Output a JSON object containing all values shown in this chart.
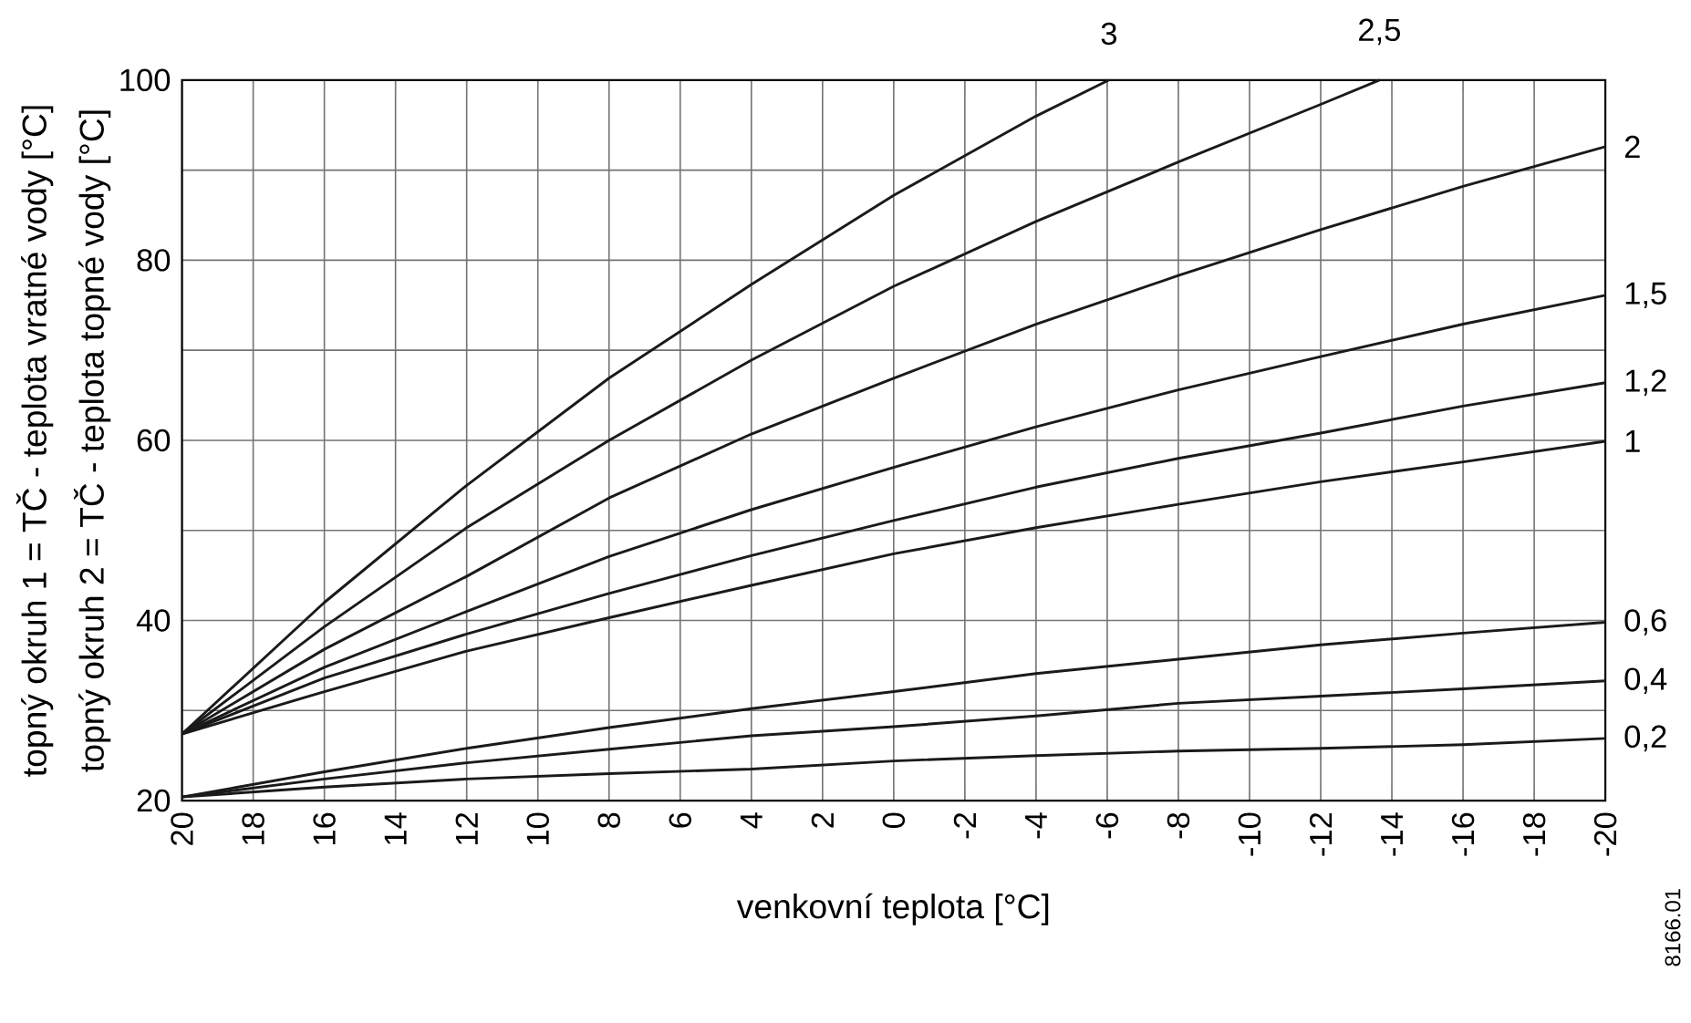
{
  "chart_data": {
    "type": "line",
    "xlabel": "venkovní teplota  [°C]",
    "ylabel": "topný okruh 1 = TČ - teplota vratné vody  [°C]",
    "annotations": [
      "topný okruh 2 = TČ - teplota topné vody  [°C]",
      "8166.01"
    ],
    "xlim": [
      20,
      -20
    ],
    "xticks": [
      20,
      18,
      16,
      14,
      12,
      10,
      8,
      6,
      4,
      2,
      0,
      -2,
      -4,
      -6,
      -8,
      -10,
      -12,
      -14,
      -16,
      -18,
      -20
    ],
    "ylim": [
      20,
      100
    ],
    "yticks": [
      20,
      {
        "value": 30,
        "label": null
      },
      40,
      {
        "value": 50,
        "label": null
      },
      60,
      {
        "value": 70,
        "label": null
      },
      80,
      {
        "value": 90,
        "label": null
      },
      100
    ],
    "grid": true,
    "marker": "none",
    "line_style": "solid",
    "series": [
      {
        "name": "3",
        "color": "#1a1a1a",
        "x": [
          20,
          16,
          12,
          8,
          4,
          0,
          -4,
          -6.05
        ],
        "values": [
          27.4,
          42.0,
          55.0,
          66.9,
          77.3,
          87.2,
          96.0,
          100
        ]
      },
      {
        "name": "2,5",
        "color": "#1a1a1a",
        "x": [
          20,
          16,
          12,
          8,
          4,
          0,
          -4,
          -8,
          -12,
          -13.65
        ],
        "values": [
          27.4,
          39.3,
          50.3,
          60.0,
          68.9,
          77.1,
          84.3,
          90.9,
          97.3,
          100
        ]
      },
      {
        "name": "2",
        "color": "#1a1a1a",
        "x": [
          20,
          16,
          12,
          8,
          4,
          0,
          -4,
          -8,
          -12,
          -16,
          -20
        ],
        "values": [
          27.4,
          36.8,
          44.9,
          53.6,
          60.7,
          66.9,
          72.9,
          78.3,
          83.4,
          88.2,
          92.6
        ]
      },
      {
        "name": "1,5",
        "color": "#1a1a1a",
        "x": [
          20,
          16,
          12,
          8,
          4,
          0,
          -4,
          -8,
          -12,
          -16,
          -20
        ],
        "values": [
          27.4,
          34.8,
          41.0,
          47.1,
          52.3,
          57.0,
          61.5,
          65.6,
          69.3,
          72.9,
          76.1
        ]
      },
      {
        "name": "1,2",
        "color": "#1a1a1a",
        "x": [
          20,
          16,
          12,
          8,
          4,
          0,
          -4,
          -8,
          -12,
          -16,
          -20
        ],
        "values": [
          27.4,
          33.6,
          38.5,
          43.0,
          47.2,
          51.1,
          54.8,
          58.0,
          60.8,
          63.8,
          66.4
        ]
      },
      {
        "name": "1",
        "color": "#1a1a1a",
        "x": [
          20,
          16,
          12,
          8,
          4,
          0,
          -4,
          -8,
          -12,
          -16,
          -20
        ],
        "values": [
          27.4,
          32.1,
          36.6,
          40.3,
          43.9,
          47.4,
          50.3,
          52.9,
          55.4,
          57.6,
          59.9
        ]
      },
      {
        "name": "0,6",
        "color": "#1a1a1a",
        "x": [
          20,
          16,
          12,
          8,
          4,
          0,
          -4,
          -8,
          -12,
          -16,
          -20
        ],
        "values": [
          20.4,
          23.2,
          25.8,
          28.1,
          30.2,
          32.1,
          34.1,
          35.7,
          37.3,
          38.6,
          39.8
        ]
      },
      {
        "name": "0,4",
        "color": "#1a1a1a",
        "x": [
          20,
          16,
          12,
          8,
          4,
          0,
          -4,
          -8,
          -12,
          -16,
          -20
        ],
        "values": [
          20.4,
          22.4,
          24.2,
          25.7,
          27.2,
          28.2,
          29.4,
          30.8,
          31.6,
          32.4,
          33.3
        ]
      },
      {
        "name": "0,2",
        "color": "#1a1a1a",
        "x": [
          20,
          16,
          12,
          8,
          4,
          0,
          -4,
          -8,
          -12,
          -16,
          -20
        ],
        "values": [
          20.4,
          21.5,
          22.4,
          23.0,
          23.5,
          24.4,
          25.0,
          25.5,
          25.8,
          26.2,
          26.9
        ]
      }
    ]
  }
}
